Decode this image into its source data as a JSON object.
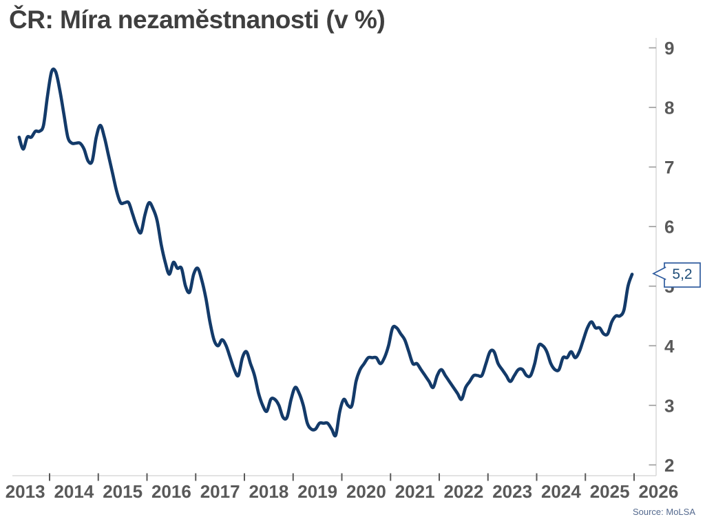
{
  "page": {
    "title": "ČR: Míra nezaměstnanosti (v %)",
    "source": "Source: MoLSA"
  },
  "chart_data": {
    "type": "line",
    "title": "ČR: Míra nezaměstnanosti (v %)",
    "xlabel": "",
    "ylabel": "",
    "unit": "%",
    "grid": "off",
    "legend": "none",
    "axis_side": "right",
    "ylim": [
      2,
      9
    ],
    "y_ticks": [
      9,
      8,
      7,
      6,
      5,
      4,
      3,
      2
    ],
    "x_tick_years": [
      "2013",
      "2014",
      "2015",
      "2016",
      "2017",
      "2018",
      "2019",
      "2020",
      "2021",
      "2022",
      "2023",
      "2024",
      "2025",
      "2026"
    ],
    "colors": {
      "line": "#133a69",
      "axis_line": "#d9d9d9",
      "y_tick": "#a0a0a0",
      "x_tick": "#595959",
      "label": "#595959",
      "title": "#3f3f3f",
      "source": "#54698e"
    },
    "series": [
      {
        "name": "Míra nezaměstnanosti (v %)",
        "start": {
          "year": 2013,
          "month": 5
        },
        "frequency": "monthly",
        "monthly_values": [
          7.5,
          7.3,
          7.5,
          7.5,
          7.6,
          7.6,
          7.7,
          8.2,
          8.6,
          8.6,
          8.3,
          7.9,
          7.5,
          7.4,
          7.4,
          7.4,
          7.3,
          7.1,
          7.1,
          7.5,
          7.7,
          7.5,
          7.2,
          6.9,
          6.6,
          6.4,
          6.4,
          6.4,
          6.2,
          6.0,
          5.9,
          6.2,
          6.4,
          6.3,
          6.1,
          5.7,
          5.4,
          5.2,
          5.4,
          5.3,
          5.3,
          5.0,
          4.9,
          5.2,
          5.3,
          5.1,
          4.8,
          4.4,
          4.1,
          4.0,
          4.1,
          4.0,
          3.8,
          3.6,
          3.5,
          3.8,
          3.9,
          3.7,
          3.5,
          3.2,
          3.0,
          2.9,
          3.1,
          3.1,
          3.0,
          2.8,
          2.8,
          3.1,
          3.3,
          3.2,
          3.0,
          2.7,
          2.6,
          2.6,
          2.7,
          2.7,
          2.7,
          2.6,
          2.5,
          2.9,
          3.1,
          3.0,
          3.0,
          3.4,
          3.6,
          3.7,
          3.8,
          3.8,
          3.8,
          3.7,
          3.8,
          4.0,
          4.3,
          4.3,
          4.2,
          4.1,
          3.9,
          3.7,
          3.7,
          3.6,
          3.5,
          3.4,
          3.3,
          3.5,
          3.6,
          3.5,
          3.4,
          3.3,
          3.2,
          3.1,
          3.3,
          3.4,
          3.5,
          3.5,
          3.5,
          3.7,
          3.9,
          3.9,
          3.7,
          3.6,
          3.5,
          3.4,
          3.5,
          3.6,
          3.6,
          3.5,
          3.5,
          3.7,
          4.0,
          4.0,
          3.9,
          3.7,
          3.6,
          3.6,
          3.8,
          3.8,
          3.9,
          3.8,
          3.9,
          4.1,
          4.3,
          4.4,
          4.3,
          4.3,
          4.2,
          4.2,
          4.4,
          4.5,
          4.5,
          4.6,
          5.0,
          5.2
        ]
      }
    ],
    "callout": {
      "label": "5,2",
      "value": 5.2,
      "text_color": "#1f4e79",
      "border_color": "#2e5b9e"
    },
    "source": "Source: MoLSA"
  }
}
